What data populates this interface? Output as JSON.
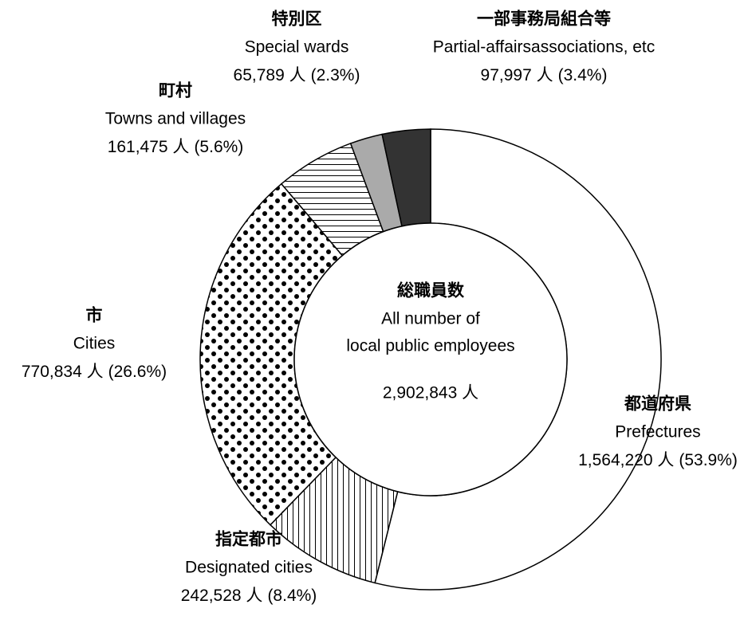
{
  "chart_data": {
    "type": "donut",
    "center_title": "総職員数",
    "center_lines": [
      "All number of",
      "local public employees"
    ],
    "total": 2902843,
    "total_label": "2,902,843 人",
    "categories": [
      "都道府県",
      "指定都市",
      "市",
      "町村",
      "特別区",
      "一部事務局組合等"
    ],
    "categories_en": [
      "Prefectures",
      "Designated cities",
      "Cities",
      "Towns and villages",
      "Special wards",
      "Partial-affairsassociations, etc"
    ],
    "values": [
      1564220,
      242528,
      770834,
      161475,
      65789,
      97997
    ],
    "value_labels": [
      "1,564,220 人",
      "242,528 人",
      "770,834 人",
      "161,475 人",
      "65,789 人",
      "97,997 人"
    ],
    "percents": [
      53.9,
      8.4,
      26.6,
      5.6,
      2.3,
      3.4
    ],
    "percent_labels": [
      "(53.9%)",
      "(8.4%)",
      "(26.6%)",
      "(5.6%)",
      "(2.3%)",
      "(3.4%)"
    ],
    "colors": [
      "#ffffff",
      "#ffffff",
      "#ffffff",
      "#ffffff",
      "#aaaaaa",
      "#333333"
    ],
    "patterns": [
      "none",
      "vertical",
      "dots",
      "horizontal",
      "none",
      "none"
    ]
  }
}
